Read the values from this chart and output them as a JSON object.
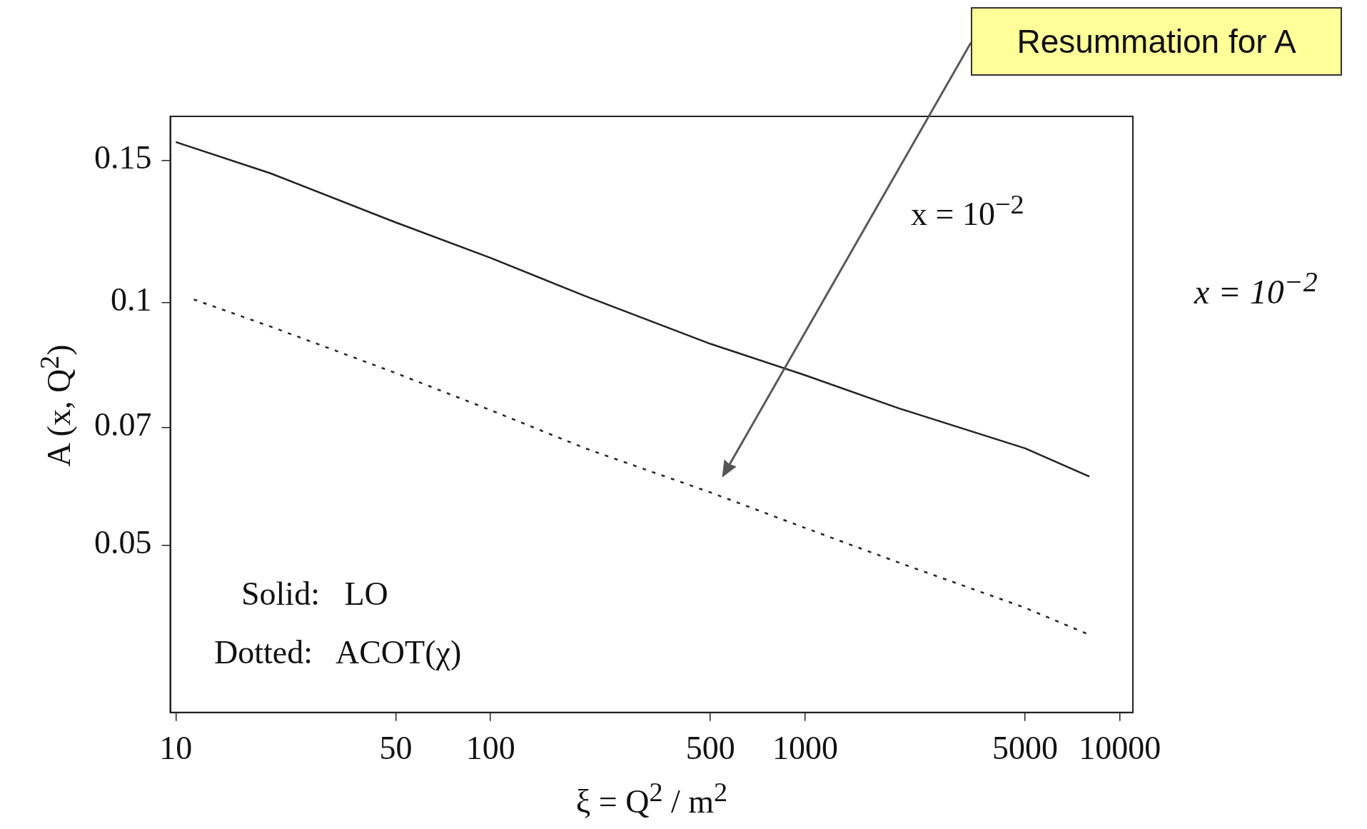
{
  "chart_data": {
    "type": "line",
    "xlabel": "ξ = Q$^{2}$ / m$^{2}$",
    "ylabel": "A (x, Q$^{2}$)",
    "log": "xy",
    "xlim": [
      9.6,
      11000
    ],
    "ylim": [
      0.031,
      0.17
    ],
    "xticks": [
      10,
      50,
      100,
      500,
      1000,
      5000,
      10000
    ],
    "yticks": [
      0.05,
      0.07,
      0.1,
      0.15
    ],
    "grid": false,
    "legend": false,
    "marker": "none",
    "series": [
      {
        "color": "#222222",
        "line_style": "solid",
        "x": [
          10,
          20,
          50,
          100,
          200,
          500,
          1000,
          2000,
          5000,
          8000
        ],
        "values": [
          0.158,
          0.1445,
          0.1256,
          0.1135,
          0.1018,
          0.0888,
          0.0812,
          0.0738,
          0.0659,
          0.0608
        ]
      },
      {
        "color": "#222222",
        "line_style": "dotted",
        "x": [
          11.4,
          20,
          50,
          100,
          200,
          500,
          1000,
          2000,
          5000,
          8000
        ],
        "values": [
          0.1008,
          0.0933,
          0.0817,
          0.0735,
          0.0659,
          0.0581,
          0.0525,
          0.0475,
          0.0418,
          0.0387
        ]
      }
    ],
    "annotations": [
      "Resummation for A",
      "x = 10$^{−2}$",
      "x = 10$^{−2}$",
      "Solid:   LO",
      "Dotted:   ACOT(χ)"
    ]
  }
}
